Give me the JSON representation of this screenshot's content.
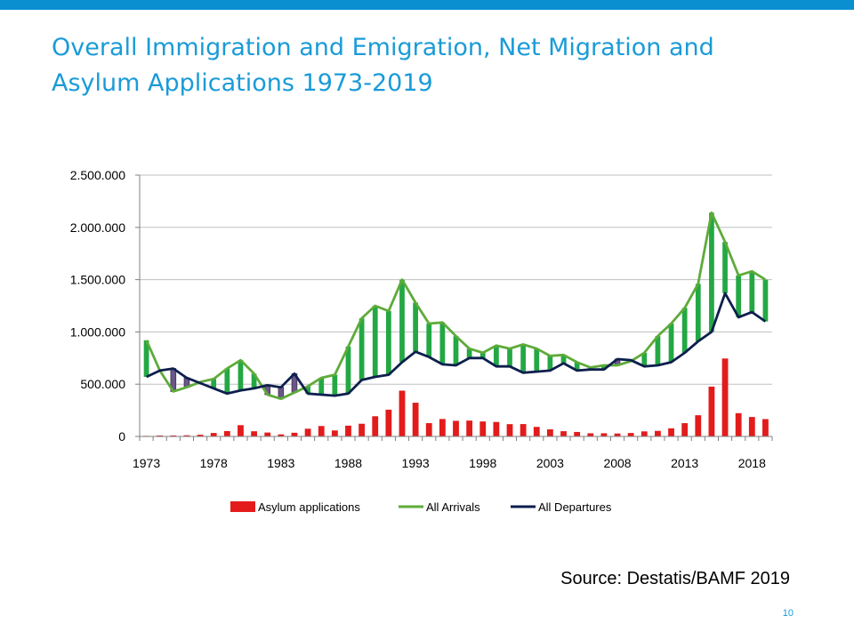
{
  "slide": {
    "title_line1": "Overall Immigration and Emigration, Net Migration and",
    "title_line2": "Asylum Applications 1973-2019",
    "source": "Source: Destatis/BAMF 2019",
    "page_number": "10",
    "accent_color": "#0a8fd1"
  },
  "chart_data": {
    "type": "bar",
    "title": "",
    "xlabel": "",
    "ylabel": "",
    "ylim": [
      0,
      2500000
    ],
    "yticks": [
      0,
      500000,
      1000000,
      1500000,
      2000000,
      2500000
    ],
    "ytick_labels": [
      "0",
      "500.000",
      "1.000.000",
      "1.500.000",
      "2.000.000",
      "2.500.000"
    ],
    "xtick_labels": [
      "1973",
      "1978",
      "1983",
      "1988",
      "1993",
      "1998",
      "2003",
      "2008",
      "2013",
      "2018"
    ],
    "grid": "horizontal",
    "legend_position": "bottom",
    "x": [
      1973,
      1974,
      1975,
      1976,
      1977,
      1978,
      1979,
      1980,
      1981,
      1982,
      1983,
      1984,
      1985,
      1986,
      1987,
      1988,
      1989,
      1990,
      1991,
      1992,
      1993,
      1994,
      1995,
      1996,
      1997,
      1998,
      1999,
      2000,
      2001,
      2002,
      2003,
      2004,
      2005,
      2006,
      2007,
      2008,
      2009,
      2010,
      2011,
      2012,
      2013,
      2014,
      2015,
      2016,
      2017,
      2018,
      2019
    ],
    "series": [
      {
        "name": "Asylum applications",
        "kind": "bar",
        "color": "#e31b1b",
        "values": [
          5600,
          9400,
          9600,
          11100,
          16400,
          33100,
          51500,
          107800,
          49400,
          37400,
          19700,
          35300,
          73800,
          99700,
          57400,
          103100,
          121300,
          193100,
          256100,
          438200,
          322600,
          127200,
          166900,
          149200,
          151700,
          143400,
          138300,
          117600,
          118300,
          91500,
          67800,
          50200,
          42900,
          30100,
          30300,
          28000,
          33000,
          48600,
          53300,
          77700,
          127000,
          202800,
          476600,
          745500,
          222700,
          185900,
          165900
        ]
      },
      {
        "name": "All Arrivals",
        "kind": "line",
        "color": "#5eab3a",
        "values": [
          920000,
          630000,
          430000,
          470000,
          520000,
          550000,
          650000,
          730000,
          600000,
          400000,
          360000,
          420000,
          480000,
          560000,
          590000,
          860000,
          1130000,
          1250000,
          1200000,
          1500000,
          1280000,
          1080000,
          1090000,
          960000,
          840000,
          800000,
          870000,
          840000,
          880000,
          840000,
          770000,
          780000,
          710000,
          660000,
          680000,
          680000,
          720000,
          800000,
          960000,
          1080000,
          1230000,
          1460000,
          2140000,
          1860000,
          1540000,
          1580000,
          1500000
        ]
      },
      {
        "name": "All Departures",
        "kind": "line",
        "color": "#0d1f4d",
        "values": [
          570000,
          630000,
          650000,
          560000,
          510000,
          460000,
          410000,
          440000,
          460000,
          490000,
          470000,
          600000,
          410000,
          400000,
          390000,
          410000,
          540000,
          570000,
          590000,
          710000,
          810000,
          760000,
          690000,
          680000,
          750000,
          750000,
          670000,
          670000,
          610000,
          620000,
          630000,
          700000,
          630000,
          640000,
          640000,
          740000,
          730000,
          670000,
          680000,
          710000,
          800000,
          910000,
          1000000,
          1370000,
          1140000,
          1190000,
          1100000
        ]
      }
    ],
    "net_migration": {
      "positive_color": "#23a844",
      "negative_color": "#6b5688"
    }
  }
}
